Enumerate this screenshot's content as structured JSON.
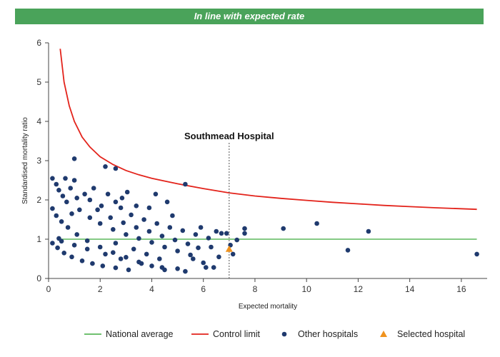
{
  "banner": {
    "text": "In line with expected rate",
    "color": "#4aa35a"
  },
  "chart_data": {
    "type": "scatter",
    "title": "In line with expected rate",
    "xlabel": "Expected mortality",
    "ylabel": "Standardised mortality ratio",
    "xlim": [
      0,
      17
    ],
    "ylim": [
      0,
      6
    ],
    "xticks": [
      0,
      2,
      4,
      6,
      8,
      10,
      12,
      14,
      16
    ],
    "yticks": [
      0,
      1,
      2,
      3,
      4,
      5,
      6
    ],
    "grid": false,
    "legend_position": "bottom",
    "annotation": {
      "text": "Southmead Hospital",
      "x": 7.0
    },
    "national_average": {
      "name": "National average",
      "y": 1,
      "color": "#5cb85c"
    },
    "control_limit": {
      "name": "Control limit",
      "color": "#e3231b",
      "points": [
        [
          0.45,
          5.85
        ],
        [
          0.6,
          5.0
        ],
        [
          0.8,
          4.4
        ],
        [
          1.0,
          4.0
        ],
        [
          1.3,
          3.6
        ],
        [
          1.6,
          3.35
        ],
        [
          2.0,
          3.1
        ],
        [
          2.5,
          2.9
        ],
        [
          3.0,
          2.75
        ],
        [
          3.5,
          2.64
        ],
        [
          4.0,
          2.55
        ],
        [
          5.0,
          2.41
        ],
        [
          6.0,
          2.29
        ],
        [
          7.0,
          2.18
        ],
        [
          8.0,
          2.1
        ],
        [
          9.0,
          2.04
        ],
        [
          10.0,
          1.99
        ],
        [
          11.0,
          1.94
        ],
        [
          12.0,
          1.9
        ],
        [
          13.0,
          1.86
        ],
        [
          14.0,
          1.83
        ],
        [
          15.0,
          1.8
        ],
        [
          16.6,
          1.76
        ]
      ]
    },
    "other_hospitals": {
      "name": "Other hospitals",
      "color": "#1f3a6e",
      "points": [
        [
          0.15,
          2.55
        ],
        [
          0.3,
          2.4
        ],
        [
          0.4,
          2.25
        ],
        [
          0.55,
          2.1
        ],
        [
          0.65,
          2.55
        ],
        [
          0.7,
          1.95
        ],
        [
          0.85,
          2.3
        ],
        [
          1.0,
          3.05
        ],
        [
          1.0,
          2.5
        ],
        [
          1.1,
          2.05
        ],
        [
          0.9,
          1.65
        ],
        [
          2.2,
          2.85
        ],
        [
          2.6,
          2.8
        ],
        [
          2.3,
          2.15
        ],
        [
          1.75,
          2.3
        ],
        [
          1.4,
          2.15
        ],
        [
          2.05,
          1.85
        ],
        [
          2.6,
          1.95
        ],
        [
          3.05,
          2.2
        ],
        [
          2.85,
          2.05
        ],
        [
          3.4,
          1.85
        ],
        [
          4.15,
          2.15
        ],
        [
          4.6,
          1.95
        ],
        [
          5.3,
          2.4
        ],
        [
          0.15,
          1.78
        ],
        [
          0.3,
          1.6
        ],
        [
          0.5,
          1.45
        ],
        [
          0.75,
          1.3
        ],
        [
          1.1,
          1.12
        ],
        [
          1.5,
          0.96
        ],
        [
          2.0,
          0.8
        ],
        [
          2.5,
          0.66
        ],
        [
          3.0,
          0.54
        ],
        [
          3.5,
          0.42
        ],
        [
          4.0,
          0.32
        ],
        [
          4.5,
          0.22
        ],
        [
          0.15,
          0.9
        ],
        [
          0.35,
          0.78
        ],
        [
          0.6,
          0.65
        ],
        [
          0.9,
          0.55
        ],
        [
          1.3,
          0.45
        ],
        [
          1.7,
          0.38
        ],
        [
          2.1,
          0.32
        ],
        [
          2.6,
          0.27
        ],
        [
          3.1,
          0.22
        ],
        [
          1.2,
          1.75
        ],
        [
          1.6,
          1.55
        ],
        [
          2.0,
          1.4
        ],
        [
          2.5,
          1.25
        ],
        [
          3.0,
          1.12
        ],
        [
          3.5,
          1.02
        ],
        [
          4.0,
          0.92
        ],
        [
          4.5,
          0.8
        ],
        [
          5.0,
          0.7
        ],
        [
          5.5,
          0.6
        ],
        [
          6.0,
          0.4
        ],
        [
          1.9,
          1.75
        ],
        [
          2.4,
          1.55
        ],
        [
          2.9,
          1.42
        ],
        [
          3.4,
          1.3
        ],
        [
          3.9,
          1.2
        ],
        [
          4.4,
          1.08
        ],
        [
          4.9,
          0.98
        ],
        [
          5.4,
          0.88
        ],
        [
          2.8,
          1.8
        ],
        [
          3.2,
          1.62
        ],
        [
          3.7,
          1.5
        ],
        [
          4.2,
          1.4
        ],
        [
          4.7,
          1.3
        ],
        [
          5.2,
          1.22
        ],
        [
          5.7,
          1.12
        ],
        [
          6.2,
          1.03
        ],
        [
          0.4,
          1.02
        ],
        [
          0.5,
          0.95
        ],
        [
          1.0,
          0.85
        ],
        [
          1.5,
          0.75
        ],
        [
          2.2,
          0.62
        ],
        [
          2.8,
          0.5
        ],
        [
          3.6,
          0.38
        ],
        [
          4.4,
          0.28
        ],
        [
          5.3,
          0.18
        ],
        [
          6.1,
          0.28
        ],
        [
          6.4,
          0.28
        ],
        [
          5.9,
          1.3
        ],
        [
          6.5,
          1.2
        ],
        [
          6.7,
          1.15
        ],
        [
          6.9,
          1.15
        ],
        [
          6.6,
          0.55
        ],
        [
          5.6,
          0.5
        ],
        [
          7.6,
          1.27
        ],
        [
          7.6,
          1.15
        ],
        [
          9.1,
          1.27
        ],
        [
          10.4,
          1.4
        ],
        [
          12.4,
          1.2
        ],
        [
          11.6,
          0.72
        ],
        [
          16.6,
          0.62
        ],
        [
          7.05,
          0.85
        ],
        [
          7.15,
          0.62
        ],
        [
          7.3,
          0.98
        ],
        [
          1.6,
          2.0
        ],
        [
          3.9,
          1.8
        ],
        [
          4.8,
          1.6
        ],
        [
          4.3,
          0.5
        ],
        [
          3.8,
          0.62
        ],
        [
          3.3,
          0.75
        ],
        [
          2.6,
          0.9
        ],
        [
          5.8,
          0.78
        ],
        [
          6.3,
          0.8
        ],
        [
          5.0,
          0.25
        ]
      ]
    },
    "selected_hospital": {
      "name": "Selected hospital",
      "color": "#f0931e",
      "x": 7.0,
      "y": 0.75
    }
  }
}
